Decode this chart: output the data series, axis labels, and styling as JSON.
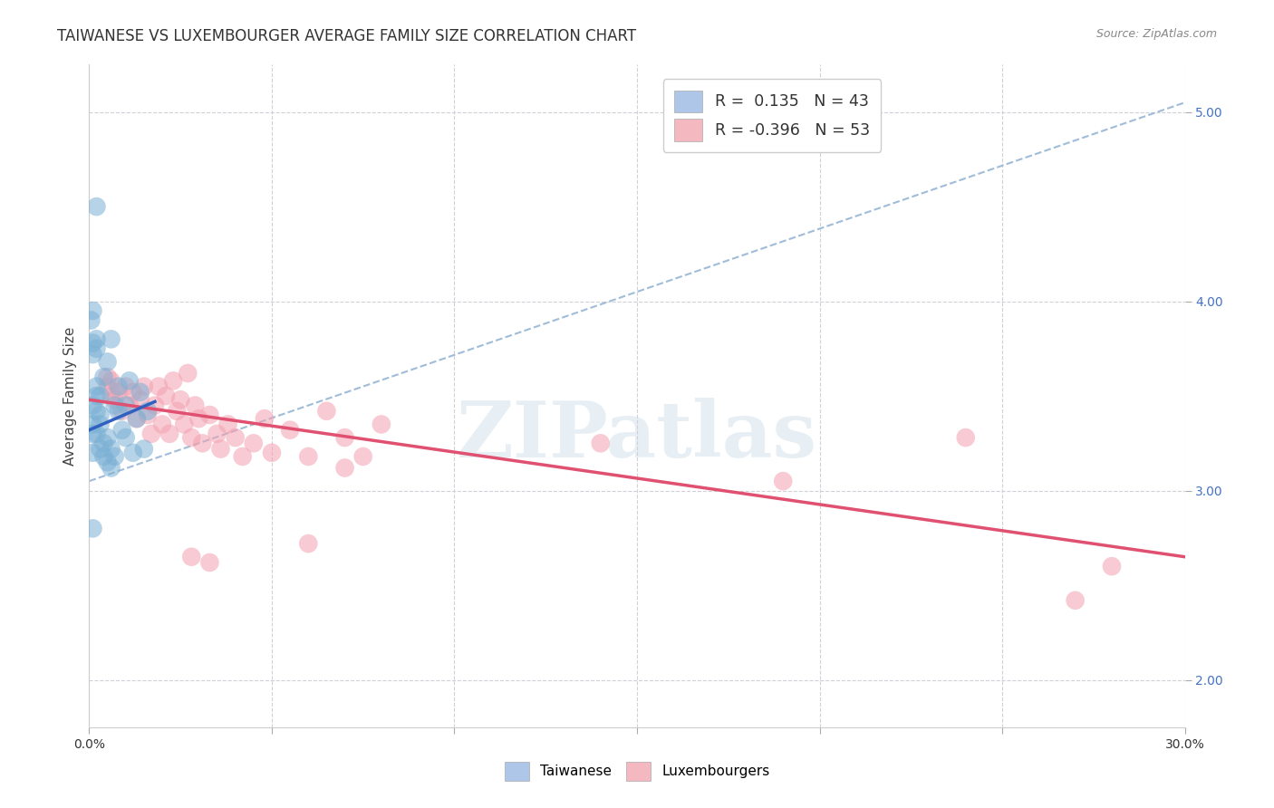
{
  "title": "TAIWANESE VS LUXEMBOURGER AVERAGE FAMILY SIZE CORRELATION CHART",
  "source": "Source: ZipAtlas.com",
  "xlabel": "",
  "ylabel": "Average Family Size",
  "xlim": [
    0.0,
    0.3
  ],
  "ylim": [
    1.75,
    5.25
  ],
  "yticks": [
    2.0,
    3.0,
    4.0,
    5.0
  ],
  "xticks": [
    0.0,
    0.05,
    0.1,
    0.15,
    0.2,
    0.25,
    0.3
  ],
  "xtick_labels": [
    "0.0%",
    "",
    "",
    "",
    "",
    "",
    "30.0%"
  ],
  "taiwanese_scatter": [
    [
      0.001,
      3.3
    ],
    [
      0.001,
      3.2
    ],
    [
      0.001,
      3.45
    ],
    [
      0.001,
      3.35
    ],
    [
      0.002,
      3.5
    ],
    [
      0.002,
      3.42
    ],
    [
      0.002,
      3.55
    ],
    [
      0.002,
      3.3
    ],
    [
      0.003,
      3.22
    ],
    [
      0.003,
      3.4
    ],
    [
      0.003,
      3.35
    ],
    [
      0.003,
      3.5
    ],
    [
      0.004,
      3.18
    ],
    [
      0.004,
      3.6
    ],
    [
      0.004,
      3.25
    ],
    [
      0.005,
      3.15
    ],
    [
      0.005,
      3.68
    ],
    [
      0.005,
      3.28
    ],
    [
      0.006,
      3.12
    ],
    [
      0.006,
      3.8
    ],
    [
      0.006,
      3.22
    ],
    [
      0.007,
      3.45
    ],
    [
      0.007,
      3.18
    ],
    [
      0.008,
      3.42
    ],
    [
      0.008,
      3.55
    ],
    [
      0.009,
      3.32
    ],
    [
      0.01,
      3.28
    ],
    [
      0.01,
      3.45
    ],
    [
      0.011,
      3.58
    ],
    [
      0.012,
      3.2
    ],
    [
      0.013,
      3.38
    ],
    [
      0.014,
      3.52
    ],
    [
      0.015,
      3.22
    ],
    [
      0.016,
      3.42
    ],
    [
      0.002,
      4.5
    ],
    [
      0.001,
      3.95
    ],
    [
      0.001,
      3.78
    ],
    [
      0.001,
      3.72
    ],
    [
      0.002,
      3.8
    ],
    [
      0.002,
      3.75
    ],
    [
      0.001,
      2.8
    ],
    [
      0.0005,
      3.9
    ]
  ],
  "luxembourger_scatter": [
    [
      0.005,
      3.55
    ],
    [
      0.005,
      3.6
    ],
    [
      0.006,
      3.5
    ],
    [
      0.006,
      3.58
    ],
    [
      0.007,
      3.48
    ],
    [
      0.008,
      3.52
    ],
    [
      0.009,
      3.42
    ],
    [
      0.01,
      3.55
    ],
    [
      0.011,
      3.45
    ],
    [
      0.012,
      3.52
    ],
    [
      0.013,
      3.38
    ],
    [
      0.014,
      3.48
    ],
    [
      0.015,
      3.55
    ],
    [
      0.016,
      3.4
    ],
    [
      0.017,
      3.3
    ],
    [
      0.018,
      3.45
    ],
    [
      0.019,
      3.55
    ],
    [
      0.02,
      3.35
    ],
    [
      0.021,
      3.5
    ],
    [
      0.022,
      3.3
    ],
    [
      0.023,
      3.58
    ],
    [
      0.024,
      3.42
    ],
    [
      0.025,
      3.48
    ],
    [
      0.026,
      3.35
    ],
    [
      0.027,
      3.62
    ],
    [
      0.028,
      3.28
    ],
    [
      0.029,
      3.45
    ],
    [
      0.03,
      3.38
    ],
    [
      0.031,
      3.25
    ],
    [
      0.033,
      3.4
    ],
    [
      0.035,
      3.3
    ],
    [
      0.036,
      3.22
    ],
    [
      0.038,
      3.35
    ],
    [
      0.04,
      3.28
    ],
    [
      0.042,
      3.18
    ],
    [
      0.045,
      3.25
    ],
    [
      0.048,
      3.38
    ],
    [
      0.05,
      3.2
    ],
    [
      0.055,
      3.32
    ],
    [
      0.06,
      3.18
    ],
    [
      0.065,
      3.42
    ],
    [
      0.07,
      3.28
    ],
    [
      0.075,
      3.18
    ],
    [
      0.08,
      3.35
    ],
    [
      0.028,
      2.65
    ],
    [
      0.033,
      2.62
    ],
    [
      0.06,
      2.72
    ],
    [
      0.07,
      3.12
    ],
    [
      0.14,
      3.25
    ],
    [
      0.19,
      3.05
    ],
    [
      0.24,
      3.28
    ],
    [
      0.27,
      2.42
    ],
    [
      0.28,
      2.6
    ]
  ],
  "tw_line_x0": 0.0,
  "tw_line_x1": 0.018,
  "tw_line_y0": 3.32,
  "tw_line_y1": 3.47,
  "lx_line_x0": 0.0,
  "lx_line_x1": 0.3,
  "lx_line_y0": 3.48,
  "lx_line_y1": 2.65,
  "dash_line_x0": 0.0,
  "dash_line_x1": 0.3,
  "dash_line_y0": 3.05,
  "dash_line_y1": 5.05,
  "scatter_color_taiwanese": "#7ab0d4",
  "scatter_color_luxembourger": "#f4a0b0",
  "line_color_taiwanese": "#3060c0",
  "line_color_luxembourger": "#e05070",
  "dashed_line_color": "#a0bcd8",
  "background_color": "#ffffff",
  "grid_color": "#d0d0d8",
  "watermark": "ZIPatlas",
  "title_fontsize": 12,
  "axis_label_fontsize": 11,
  "tick_fontsize": 10
}
